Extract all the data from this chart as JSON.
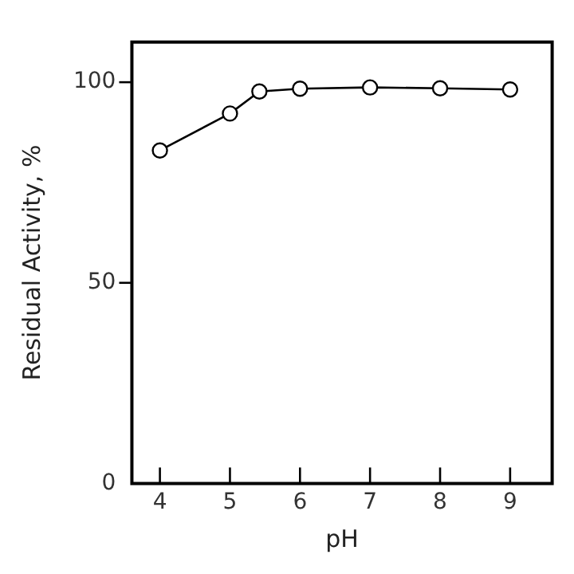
{
  "chart_data": {
    "type": "line",
    "xlabel": "pH",
    "ylabel": "Residual Activity, %",
    "x": [
      4,
      5,
      5.42,
      6,
      7,
      8,
      9
    ],
    "series": [
      {
        "color": "#000000",
        "values": [
          83,
          92.2,
          97.7,
          98.4,
          98.7,
          98.5,
          98.2
        ]
      }
    ],
    "xlim": [
      3.6,
      9.6
    ],
    "xticks": [
      4,
      5,
      6,
      7,
      8,
      9
    ],
    "ylim": [
      0,
      110
    ],
    "yticks": [
      0,
      50,
      100
    ],
    "marker": "circle",
    "line_style": "solid",
    "grid": false,
    "legend": false
  }
}
